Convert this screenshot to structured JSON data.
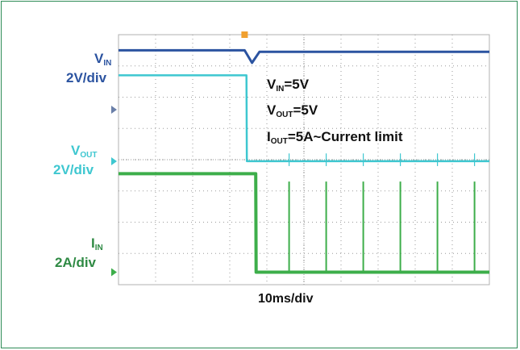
{
  "labels": {
    "vin_main": "V",
    "vin_sub": "IN",
    "vin_scale": "2V/div",
    "vout_main": "V",
    "vout_sub": "OUT",
    "vout_scale": "2V/div",
    "iin_main": "I",
    "iin_sub": "IN",
    "iin_scale": "2A/div",
    "timebase": "10ms/div"
  },
  "annotations": {
    "line1_main": "V",
    "line1_sub": "IN",
    "line1_rest": "=5V",
    "line2_main": "V",
    "line2_sub": "OUT",
    "line2_rest": "=5V",
    "line3_main": "I",
    "line3_sub": "OUT",
    "line3_rest": "=5A~Current limit"
  },
  "colors": {
    "vin": "#2b53a0",
    "vout": "#3ec7d0",
    "iin": "#3dae4a",
    "grid": "#9a9a9a",
    "frame": "#2e8b57"
  },
  "chart_data": {
    "type": "line",
    "x_divisions": 10,
    "y_divisions": 8,
    "x_unit": "ms",
    "x_per_div": 10,
    "series": [
      {
        "name": "VIN",
        "scale": "2V/div",
        "x": [
          0,
          34,
          35,
          36,
          38,
          100
        ],
        "y": [
          7.5,
          7.5,
          7.3,
          7.1,
          7.45,
          7.45
        ]
      },
      {
        "name": "VOUT",
        "scale": "2V/div",
        "x": [
          0,
          34.5,
          34.6,
          100
        ],
        "y": [
          6.7,
          6.7,
          3.95,
          3.95
        ]
      },
      {
        "name": "IIN",
        "scale": "2A/div",
        "x": [
          0,
          37,
          37.1,
          100
        ],
        "y": [
          3.55,
          3.55,
          0.4,
          0.4
        ],
        "pulses_x": [
          46,
          56,
          66,
          76,
          86,
          96
        ]
      }
    ]
  }
}
